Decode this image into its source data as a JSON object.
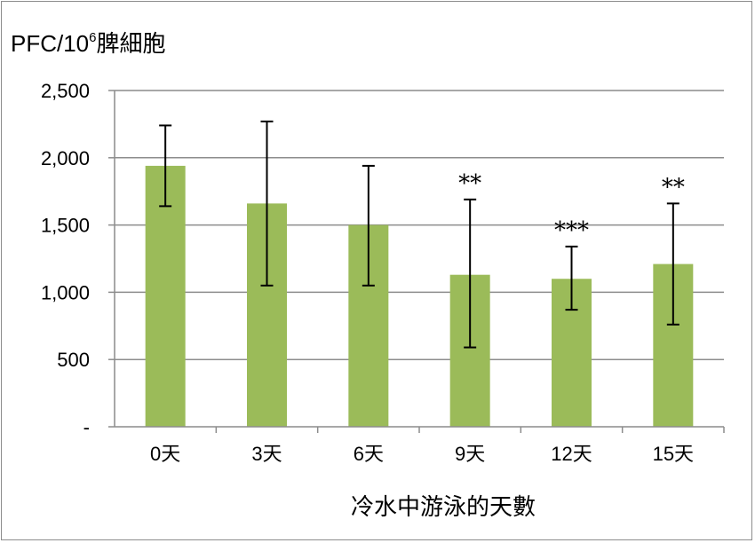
{
  "chart_data": {
    "type": "bar",
    "ylabel_prefix": "PFC/10",
    "ylabel_sup": "6",
    "ylabel_suffix": "脾細胞",
    "xlabel": "冷水中游泳的天數",
    "categories": [
      "0天",
      "3天",
      "6天",
      "9天",
      "12天",
      "15天"
    ],
    "values": [
      1940,
      1660,
      1500,
      1130,
      1100,
      1210
    ],
    "error_high": [
      2240,
      2270,
      1940,
      1690,
      1340,
      1660
    ],
    "error_low": [
      1640,
      1050,
      1050,
      590,
      870,
      760
    ],
    "significance": [
      "",
      "",
      "",
      "**",
      "***",
      "**"
    ],
    "ylim": [
      0,
      2500
    ],
    "yticks": [
      0,
      500,
      1000,
      1500,
      2000,
      2500
    ],
    "ytick_labels": [
      "-",
      "500",
      "1,000",
      "1,500",
      "2,000",
      "2,500"
    ],
    "grid": true,
    "bar_color": "#9bbb59",
    "grid_color": "#8c8c8c"
  }
}
